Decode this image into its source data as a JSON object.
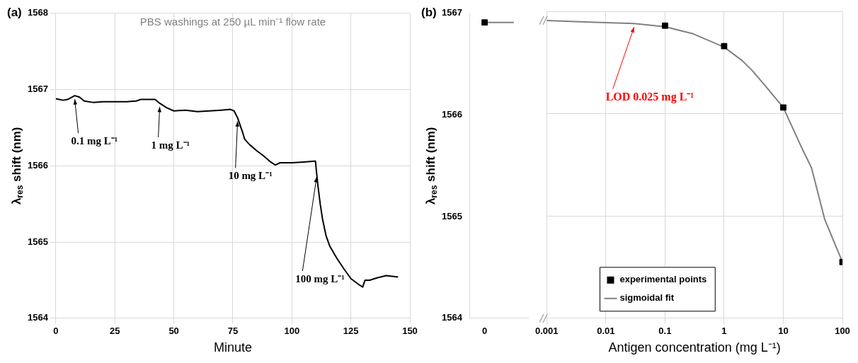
{
  "chart_data": [
    {
      "type": "line",
      "title": "(a)",
      "xlabel": "Minute",
      "ylabel": "λ$_{res}$ shift (nm)",
      "xlim": [
        0,
        150
      ],
      "xticks": [
        0,
        25,
        50,
        75,
        100,
        125,
        150
      ],
      "ylim": [
        1564,
        1568
      ],
      "yticks": [
        1564,
        1565,
        1566,
        1567,
        1568
      ],
      "grid": true,
      "marker": "none",
      "line_style": "solid",
      "series": [
        {
          "color": "#000000",
          "x": [
            0,
            3,
            5,
            8,
            10,
            12,
            16,
            20,
            25,
            30,
            34,
            36,
            40,
            42,
            44,
            47,
            50,
            55,
            60,
            65,
            70,
            74,
            75.5,
            77,
            79,
            80,
            82,
            85,
            88,
            91,
            93,
            95,
            100,
            105,
            109.5,
            110,
            110.5,
            111,
            112,
            113,
            114.5,
            116,
            119,
            122,
            125,
            128,
            130,
            131,
            133,
            136,
            140,
            145
          ],
          "values": [
            1566.88,
            1566.86,
            1566.87,
            1566.92,
            1566.9,
            1566.85,
            1566.83,
            1566.84,
            1566.84,
            1566.84,
            1566.85,
            1566.87,
            1566.87,
            1566.87,
            1566.82,
            1566.76,
            1566.72,
            1566.73,
            1566.71,
            1566.72,
            1566.73,
            1566.74,
            1566.72,
            1566.63,
            1566.45,
            1566.35,
            1566.28,
            1566.2,
            1566.13,
            1566.05,
            1566.01,
            1566.04,
            1566.04,
            1566.05,
            1566.06,
            1566.06,
            1565.9,
            1565.75,
            1565.5,
            1565.3,
            1565.08,
            1564.95,
            1564.79,
            1564.65,
            1564.52,
            1564.45,
            1564.41,
            1564.5,
            1564.5,
            1564.53,
            1564.56,
            1564.54
          ]
        }
      ],
      "annotations": [
        "PBS washings at 250 µL min⁻¹ flow rate",
        {
          "text": "0.1 mg L⁻¹",
          "x": 8,
          "y": 1566.92
        },
        {
          "text": "1 mg L⁻¹",
          "x": 44,
          "y": 1566.82
        },
        {
          "text": "10 mg L⁻¹",
          "x": 77,
          "y": 1566.63
        },
        {
          "text": "100 mg L⁻¹",
          "x": 110.5,
          "y": 1565.9
        }
      ]
    },
    {
      "type": "scatter",
      "title": "(b)",
      "ylabel": "λ$_{res}$ shift (nm)",
      "categories": [
        "0",
        null
      ],
      "ylim": [
        1564,
        1567
      ],
      "yticks": [
        1564,
        1565,
        1566,
        1567
      ],
      "series": [
        {
          "marker": "square",
          "color": "#000000",
          "values": [
            1566.91,
            null
          ]
        },
        {
          "type": "line",
          "marker": "none",
          "color": "#808080",
          "values": [
            1566.91,
            1566.91
          ]
        }
      ]
    },
    {
      "type": "scatter",
      "xlabel": "Antigen concentration (mg L⁻¹)",
      "log": "x",
      "xlim": [
        0.001,
        100
      ],
      "xticks": [
        0.001,
        0.01,
        0.1,
        1,
        10,
        100
      ],
      "ylim": [
        1564,
        1567
      ],
      "yticks": [
        1564,
        1565,
        1566,
        1567
      ],
      "tick_labels": "x",
      "grid": true,
      "legend": "bottom left",
      "series": [
        {
          "name": "experimental points",
          "marker": "square",
          "color": "#000000",
          "x": [
            0.1,
            1,
            10,
            100
          ],
          "values": [
            1566.86,
            1566.66,
            1566.06,
            1564.55
          ]
        },
        {
          "name": "sigmoidal fit",
          "type": "line",
          "marker": "none",
          "color": "#808080",
          "x": [
            0.001,
            0.003,
            0.01,
            0.03,
            0.1,
            0.3,
            1,
            2,
            3,
            5,
            10,
            20,
            30,
            50,
            100
          ],
          "values": [
            1566.91,
            1566.9,
            1566.89,
            1566.88,
            1566.85,
            1566.78,
            1566.65,
            1566.52,
            1566.42,
            1566.27,
            1566.06,
            1565.68,
            1565.47,
            1564.97,
            1564.55
          ]
        }
      ],
      "annotations": [
        {
          "text": "LOD 0.025 mg L⁻¹",
          "x": 0.03,
          "y": 1566.88
        }
      ]
    }
  ]
}
